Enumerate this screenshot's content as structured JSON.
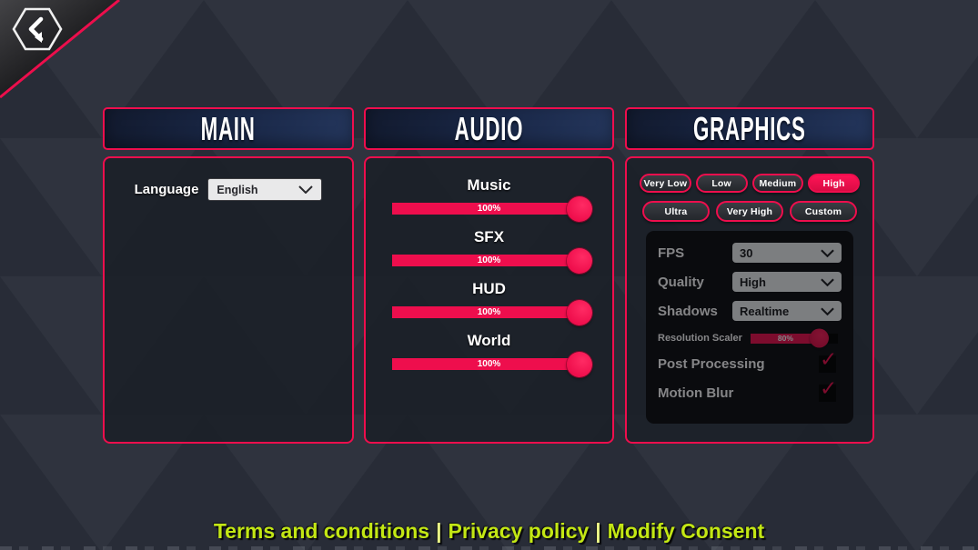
{
  "back_button": {
    "icon": "chevron-left"
  },
  "icons": {
    "check": "✓"
  },
  "panels": {
    "main": {
      "title": "MAIN",
      "language_label": "Language",
      "language_value": "English"
    },
    "audio": {
      "title": "AUDIO",
      "sliders": [
        {
          "label": "Music",
          "value": "100%",
          "percent": 100
        },
        {
          "label": "SFX",
          "value": "100%",
          "percent": 100
        },
        {
          "label": "HUD",
          "value": "100%",
          "percent": 100
        },
        {
          "label": "World",
          "value": "100%",
          "percent": 100
        }
      ]
    },
    "graphics": {
      "title": "GRAPHICS",
      "presets": [
        {
          "label": "Very Low",
          "selected": false
        },
        {
          "label": "Low",
          "selected": false
        },
        {
          "label": "Medium",
          "selected": false
        },
        {
          "label": "High",
          "selected": true
        },
        {
          "label": "Ultra",
          "selected": false
        },
        {
          "label": "Very High",
          "selected": false
        },
        {
          "label": "Custom",
          "selected": false
        }
      ],
      "settings": {
        "selects": [
          {
            "label": "FPS",
            "value": "30"
          },
          {
            "label": "Quality",
            "value": "High"
          },
          {
            "label": "Shadows",
            "value": "Realtime"
          }
        ],
        "resolution": {
          "label": "Resolution Scaler",
          "value": "80%",
          "percent": 80
        },
        "toggles": [
          {
            "label": "Post Processing",
            "checked": true
          },
          {
            "label": "Motion Blur",
            "checked": true
          }
        ]
      }
    }
  },
  "footer": {
    "links": [
      "Terms and conditions",
      "Privacy policy",
      "Modify Consent"
    ],
    "separator": "|"
  },
  "colors": {
    "accent": "#ee0e4d",
    "accent_dark": "#c90d41",
    "header_navy": "#24365c",
    "footer_green": "#c3e714",
    "background": "#272c37"
  }
}
